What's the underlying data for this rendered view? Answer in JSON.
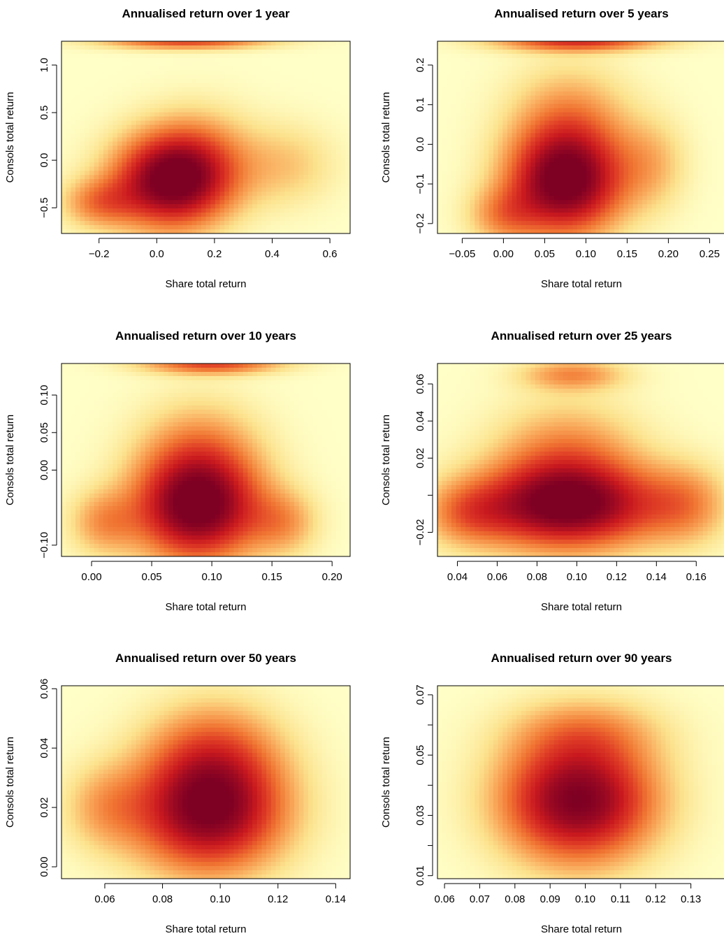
{
  "colors": {
    "scale": [
      "#FFFFC8",
      "#FCE28D",
      "#F9A85A",
      "#F07432",
      "#E03E26",
      "#C9191F",
      "#9E0A22",
      "#7E0023"
    ],
    "axis": "#000000",
    "background": "#FFFFFF"
  },
  "chart_data": [
    {
      "type": "heatmap",
      "title": "Annualised return over  1  year",
      "xlabel": "Share total return",
      "ylabel": "Consols total return",
      "xlim": [
        -0.33,
        0.67
      ],
      "ylim": [
        -0.77,
        1.25
      ],
      "xticks": [
        {
          "v": -0.2,
          "label": "−0.2"
        },
        {
          "v": 0.0,
          "label": "0.0"
        },
        {
          "v": 0.2,
          "label": "0.2"
        },
        {
          "v": 0.4,
          "label": "0.4"
        },
        {
          "v": 0.6,
          "label": "0.6"
        }
      ],
      "yticks": [
        {
          "v": -0.5,
          "label": "−0.5"
        },
        {
          "v": 0.0,
          "label": "0.0"
        },
        {
          "v": 0.5,
          "label": "0.5"
        },
        {
          "v": 1.0,
          "label": "1.0"
        }
      ],
      "blobs": [
        {
          "x": 0.05,
          "y": -0.22,
          "sx": 0.14,
          "sy": 0.34,
          "w": 1.0
        },
        {
          "x": 0.15,
          "y": 0.05,
          "sx": 0.13,
          "sy": 0.36,
          "w": 0.25
        },
        {
          "x": -0.2,
          "y": -0.45,
          "sx": 0.09,
          "sy": 0.18,
          "w": 0.35
        },
        {
          "x": 0.1,
          "y": 1.25,
          "sx": 0.2,
          "sy": 0.06,
          "w": 0.55
        },
        {
          "x": 0.45,
          "y": -0.05,
          "sx": 0.12,
          "sy": 0.3,
          "w": 0.2
        }
      ]
    },
    {
      "type": "heatmap",
      "title": "Annualised return over  5 years",
      "xlabel": "Share total return",
      "ylabel": "Consols total return",
      "xlim": [
        -0.08,
        0.27
      ],
      "ylim": [
        -0.225,
        0.26
      ],
      "xticks": [
        {
          "v": -0.05,
          "label": "−0.05"
        },
        {
          "v": 0.0,
          "label": "0.00"
        },
        {
          "v": 0.05,
          "label": "0.05"
        },
        {
          "v": 0.1,
          "label": "0.10"
        },
        {
          "v": 0.15,
          "label": "0.15"
        },
        {
          "v": 0.2,
          "label": "0.20"
        },
        {
          "v": 0.25,
          "label": "0.25"
        }
      ],
      "yticks": [
        {
          "v": -0.2,
          "label": "−0.2"
        },
        {
          "v": -0.1,
          "label": "−0.1"
        },
        {
          "v": 0.0,
          "label": "0.0"
        },
        {
          "v": 0.1,
          "label": "0.1"
        },
        {
          "v": 0.2,
          "label": "0.2"
        }
      ],
      "blobs": [
        {
          "x": 0.075,
          "y": -0.1,
          "sx": 0.048,
          "sy": 0.09,
          "w": 1.0
        },
        {
          "x": 0.08,
          "y": 0.05,
          "sx": 0.05,
          "sy": 0.1,
          "w": 0.35
        },
        {
          "x": 0.09,
          "y": 0.26,
          "sx": 0.07,
          "sy": 0.018,
          "w": 0.6
        },
        {
          "x": 0.0,
          "y": -0.18,
          "sx": 0.03,
          "sy": 0.05,
          "w": 0.3
        },
        {
          "x": 0.18,
          "y": -0.05,
          "sx": 0.03,
          "sy": 0.08,
          "w": 0.22
        }
      ]
    },
    {
      "type": "heatmap",
      "title": "Annualised return over  10 years",
      "xlabel": "Share total return",
      "ylabel": "Consols total return",
      "xlim": [
        -0.025,
        0.215
      ],
      "ylim": [
        -0.115,
        0.142
      ],
      "xticks": [
        {
          "v": 0.0,
          "label": "0.00"
        },
        {
          "v": 0.05,
          "label": "0.05"
        },
        {
          "v": 0.1,
          "label": "0.10"
        },
        {
          "v": 0.15,
          "label": "0.15"
        },
        {
          "v": 0.2,
          "label": "0.20"
        }
      ],
      "yticks": [
        {
          "v": -0.1,
          "label": "−0.10"
        },
        {
          "v": 0.0,
          "label": "0.00"
        },
        {
          "v": 0.05,
          "label": "0.05"
        },
        {
          "v": 0.1,
          "label": "0.10"
        }
      ],
      "blobs": [
        {
          "x": 0.088,
          "y": -0.052,
          "sx": 0.036,
          "sy": 0.048,
          "w": 1.0
        },
        {
          "x": 0.09,
          "y": 0.02,
          "sx": 0.035,
          "sy": 0.05,
          "w": 0.35
        },
        {
          "x": 0.1,
          "y": 0.142,
          "sx": 0.04,
          "sy": 0.01,
          "w": 0.55
        },
        {
          "x": 0.01,
          "y": -0.07,
          "sx": 0.02,
          "sy": 0.03,
          "w": 0.3
        },
        {
          "x": 0.16,
          "y": -0.07,
          "sx": 0.02,
          "sy": 0.03,
          "w": 0.28
        }
      ]
    },
    {
      "type": "heatmap",
      "title": "Annualised return over  25 years",
      "xlabel": "Share total return",
      "ylabel": "Consols total return",
      "xlim": [
        0.03,
        0.175
      ],
      "ylim": [
        -0.033,
        0.071
      ],
      "xticks": [
        {
          "v": 0.04,
          "label": "0.04"
        },
        {
          "v": 0.06,
          "label": "0.06"
        },
        {
          "v": 0.08,
          "label": "0.08"
        },
        {
          "v": 0.1,
          "label": "0.10"
        },
        {
          "v": 0.12,
          "label": "0.12"
        },
        {
          "v": 0.14,
          "label": "0.14"
        },
        {
          "v": 0.16,
          "label": "0.16"
        }
      ],
      "yticks": [
        {
          "v": -0.02,
          "label": "−0.02"
        },
        {
          "v": 0.0,
          "label": ""
        },
        {
          "v": 0.02,
          "label": "0.02"
        },
        {
          "v": 0.04,
          "label": "0.04"
        },
        {
          "v": 0.06,
          "label": "0.06"
        }
      ],
      "blobs": [
        {
          "x": 0.095,
          "y": -0.006,
          "sx": 0.032,
          "sy": 0.016,
          "w": 1.0
        },
        {
          "x": 0.095,
          "y": 0.022,
          "sx": 0.025,
          "sy": 0.02,
          "w": 0.35
        },
        {
          "x": 0.098,
          "y": 0.065,
          "sx": 0.018,
          "sy": 0.006,
          "w": 0.35
        },
        {
          "x": 0.045,
          "y": -0.01,
          "sx": 0.015,
          "sy": 0.012,
          "w": 0.3
        },
        {
          "x": 0.155,
          "y": -0.005,
          "sx": 0.015,
          "sy": 0.015,
          "w": 0.3
        }
      ]
    },
    {
      "type": "heatmap",
      "title": "Annualised return over  50 years",
      "xlabel": "Share total return",
      "ylabel": "Consols total return",
      "xlim": [
        0.045,
        0.145
      ],
      "ylim": [
        -0.004,
        0.061
      ],
      "xticks": [
        {
          "v": 0.06,
          "label": "0.06"
        },
        {
          "v": 0.08,
          "label": "0.08"
        },
        {
          "v": 0.1,
          "label": "0.10"
        },
        {
          "v": 0.12,
          "label": "0.12"
        },
        {
          "v": 0.14,
          "label": "0.14"
        }
      ],
      "yticks": [
        {
          "v": 0.0,
          "label": "0.00"
        },
        {
          "v": 0.02,
          "label": "0.02"
        },
        {
          "v": 0.04,
          "label": "0.04"
        },
        {
          "v": 0.06,
          "label": "0.06"
        }
      ],
      "blobs": [
        {
          "x": 0.096,
          "y": 0.019,
          "sx": 0.018,
          "sy": 0.014,
          "w": 1.0
        },
        {
          "x": 0.098,
          "y": 0.04,
          "sx": 0.016,
          "sy": 0.012,
          "w": 0.35
        },
        {
          "x": 0.06,
          "y": 0.02,
          "sx": 0.01,
          "sy": 0.01,
          "w": 0.25
        }
      ]
    },
    {
      "type": "heatmap",
      "title": "Annualised return over  90 years",
      "xlabel": "Share total return",
      "ylabel": "Consols total return",
      "xlim": [
        0.058,
        0.14
      ],
      "ylim": [
        0.009,
        0.073
      ],
      "xticks": [
        {
          "v": 0.06,
          "label": "0.06"
        },
        {
          "v": 0.07,
          "label": "0.07"
        },
        {
          "v": 0.08,
          "label": "0.08"
        },
        {
          "v": 0.09,
          "label": "0.09"
        },
        {
          "v": 0.1,
          "label": "0.10"
        },
        {
          "v": 0.11,
          "label": "0.11"
        },
        {
          "v": 0.12,
          "label": "0.12"
        },
        {
          "v": 0.13,
          "label": "0.13"
        }
      ],
      "yticks": [
        {
          "v": 0.01,
          "label": "0.01"
        },
        {
          "v": 0.02,
          "label": ""
        },
        {
          "v": 0.03,
          "label": "0.03"
        },
        {
          "v": 0.04,
          "label": ""
        },
        {
          "v": 0.05,
          "label": "0.05"
        },
        {
          "v": 0.06,
          "label": ""
        },
        {
          "v": 0.07,
          "label": "0.07"
        }
      ],
      "blobs": [
        {
          "x": 0.098,
          "y": 0.035,
          "sx": 0.015,
          "sy": 0.014,
          "w": 1.0
        },
        {
          "x": 0.1,
          "y": 0.058,
          "sx": 0.015,
          "sy": 0.008,
          "w": 0.25
        }
      ]
    }
  ]
}
